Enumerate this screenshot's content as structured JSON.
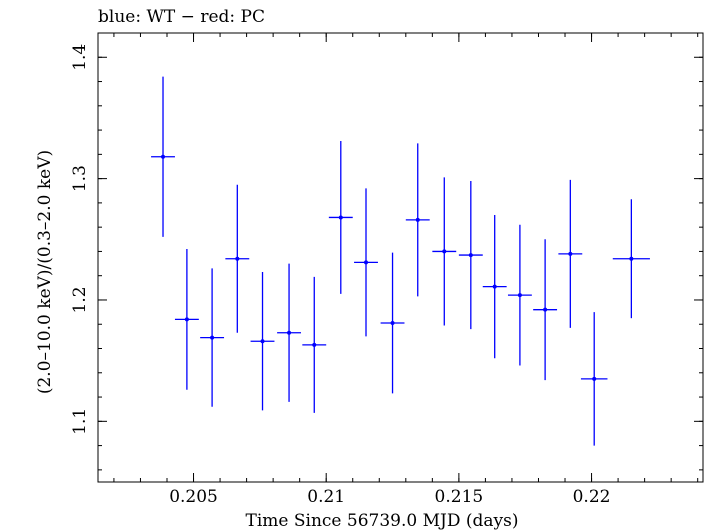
{
  "chart_data": {
    "type": "scatter",
    "title": "blue: WT − red: PC",
    "xlabel": "Time Since 56739.0 MJD (days)",
    "ylabel": "(2.0–10.0 keV)/(0.3–2.0 keV)",
    "xlim": [
      0.2014,
      0.2242
    ],
    "ylim": [
      1.05,
      1.42
    ],
    "x_ticks": [
      0.205,
      0.21,
      0.215,
      0.22
    ],
    "x_tick_labels": [
      "0.205",
      "0.21",
      "0.215",
      "0.22"
    ],
    "y_ticks": [
      1.1,
      1.2,
      1.3,
      1.4
    ],
    "y_tick_labels": [
      "1.1",
      "1.2",
      "1.3",
      "1.4"
    ],
    "x_minor_step": 0.001,
    "y_minor_step": 0.02,
    "grid": false,
    "series_color": "#0000ff",
    "series": [
      {
        "color": "#0000ff",
        "points": [
          {
            "x": 0.20385,
            "xerr": 0.00045,
            "y": 1.318,
            "yerr_low": 0.066,
            "yerr_high": 0.066
          },
          {
            "x": 0.20475,
            "xerr": 0.00045,
            "y": 1.184,
            "yerr_low": 0.058,
            "yerr_high": 0.058
          },
          {
            "x": 0.2057,
            "xerr": 0.00045,
            "y": 1.169,
            "yerr_low": 0.057,
            "yerr_high": 0.057
          },
          {
            "x": 0.20665,
            "xerr": 0.00045,
            "y": 1.234,
            "yerr_low": 0.061,
            "yerr_high": 0.061
          },
          {
            "x": 0.2076,
            "xerr": 0.00045,
            "y": 1.166,
            "yerr_low": 0.057,
            "yerr_high": 0.057
          },
          {
            "x": 0.2086,
            "xerr": 0.00045,
            "y": 1.173,
            "yerr_low": 0.057,
            "yerr_high": 0.057
          },
          {
            "x": 0.20955,
            "xerr": 0.00045,
            "y": 1.163,
            "yerr_low": 0.056,
            "yerr_high": 0.056
          },
          {
            "x": 0.21055,
            "xerr": 0.00045,
            "y": 1.268,
            "yerr_low": 0.063,
            "yerr_high": 0.063
          },
          {
            "x": 0.2115,
            "xerr": 0.00045,
            "y": 1.231,
            "yerr_low": 0.061,
            "yerr_high": 0.061
          },
          {
            "x": 0.2125,
            "xerr": 0.00045,
            "y": 1.181,
            "yerr_low": 0.058,
            "yerr_high": 0.058
          },
          {
            "x": 0.21345,
            "xerr": 0.00045,
            "y": 1.266,
            "yerr_low": 0.063,
            "yerr_high": 0.063
          },
          {
            "x": 0.21445,
            "xerr": 0.00045,
            "y": 1.24,
            "yerr_low": 0.061,
            "yerr_high": 0.061
          },
          {
            "x": 0.21545,
            "xerr": 0.00045,
            "y": 1.237,
            "yerr_low": 0.061,
            "yerr_high": 0.061
          },
          {
            "x": 0.21635,
            "xerr": 0.00045,
            "y": 1.211,
            "yerr_low": 0.059,
            "yerr_high": 0.059
          },
          {
            "x": 0.2173,
            "xerr": 0.00045,
            "y": 1.204,
            "yerr_low": 0.058,
            "yerr_high": 0.058
          },
          {
            "x": 0.21825,
            "xerr": 0.00045,
            "y": 1.192,
            "yerr_low": 0.058,
            "yerr_high": 0.058
          },
          {
            "x": 0.2192,
            "xerr": 0.00045,
            "y": 1.238,
            "yerr_low": 0.061,
            "yerr_high": 0.061
          },
          {
            "x": 0.2201,
            "xerr": 0.0005,
            "y": 1.135,
            "yerr_low": 0.055,
            "yerr_high": 0.055
          },
          {
            "x": 0.2215,
            "xerr": 0.0007,
            "y": 1.234,
            "yerr_low": 0.049,
            "yerr_high": 0.049
          }
        ]
      }
    ]
  }
}
